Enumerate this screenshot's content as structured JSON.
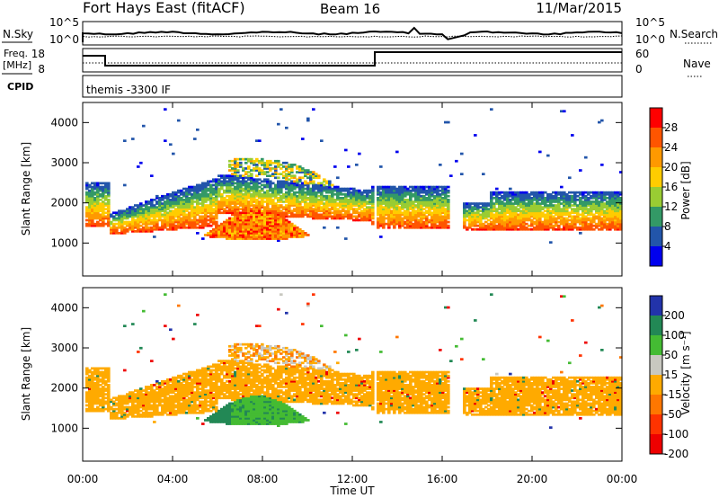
{
  "header": {
    "station": "Fort Hays East (fitACF)",
    "beam": "Beam 16",
    "date": "11/Mar/2015"
  },
  "control_panel": {
    "nsky_label": "N.Sky",
    "nsearch_label": "N.Search",
    "nsky_ticks": [
      "10^5",
      "10^0"
    ],
    "nsky_right_ticks": [
      "10^5",
      "10^0"
    ],
    "freq_label_line1": "Freq.",
    "freq_label_line2": "[MHz]",
    "freq_ticks": [
      "18",
      "8"
    ],
    "nave_label": "Nave",
    "nave_ticks": [
      "60",
      "0"
    ],
    "cpid_label": "CPID",
    "cpid_text": "themis -3300 IF"
  },
  "colorbars": {
    "power": {
      "label": "Power [dB]",
      "ticks": [
        "28",
        "24",
        "20",
        "16",
        "12",
        "8",
        "4"
      ]
    },
    "velocity": {
      "label": "Velocity [m s⁻¹]",
      "ticks": [
        "200",
        "100",
        "50",
        "15",
        "-15",
        "-50",
        "-100",
        "-200"
      ]
    }
  },
  "colors": {
    "power_scale": [
      "#ff0000",
      "#ff5500",
      "#ff9900",
      "#ffcc00",
      "#99cc33",
      "#339966",
      "#2255aa",
      "#0000ee"
    ],
    "velocity_scale": [
      "#2233aa",
      "#228855",
      "#44bb33",
      "#c8c8c0",
      "#ffaa00",
      "#ff7700",
      "#ff3300",
      "#ee0000"
    ],
    "ground_scatter": "#c8c8c0"
  },
  "chart_data": [
    {
      "type": "heatmap",
      "title": "",
      "xlabel": "Time UT",
      "ylabel": "Slant Range [km]",
      "x_ticks": [
        "00:00",
        "04:00",
        "08:00",
        "12:00",
        "16:00",
        "20:00",
        "00:00"
      ],
      "xlim": [
        0,
        24
      ],
      "y_ticks": [
        "4000",
        "3000",
        "2000",
        "1000"
      ],
      "ylim": [
        180,
        4500
      ],
      "colorbar": "Power [dB]",
      "clim": [
        0,
        30
      ],
      "features": [
        {
          "name": "mid-range scatter band",
          "t_start": 0.0,
          "t_end": 12.8,
          "range_km": [
            2200,
            1350
          ]
        },
        {
          "name": "near-range patch",
          "t_start": 5.4,
          "t_end": 10.0,
          "range_km": [
            1350,
            1100
          ],
          "power_db": 26
        },
        {
          "name": "upper arc",
          "t_start": 6.5,
          "t_end": 12.5,
          "range_km": [
            3000,
            1800
          ]
        },
        {
          "name": "post-gap band",
          "t_start": 13.0,
          "t_end": 24.0,
          "range_km": [
            2000,
            1450
          ],
          "power_db": 24
        }
      ]
    },
    {
      "type": "heatmap",
      "title": "",
      "xlabel": "Time UT",
      "ylabel": "Slant Range [km]",
      "x_ticks": [
        "00:00",
        "04:00",
        "08:00",
        "12:00",
        "16:00",
        "20:00",
        "00:00"
      ],
      "xlim": [
        0,
        24
      ],
      "y_ticks": [
        "4000",
        "3000",
        "2000",
        "1000"
      ],
      "ylim": [
        180,
        4500
      ],
      "colorbar": "Velocity [m s⁻¹]",
      "clim": [
        -200,
        200
      ],
      "features": [
        {
          "name": "ground scatter band",
          "t_start": 0.0,
          "t_end": 24.0,
          "range_km": [
            2400,
            1400
          ],
          "velocity": 0
        },
        {
          "name": "near-range patch",
          "t_start": 5.4,
          "t_end": 10.0,
          "range_km": [
            1350,
            1100
          ],
          "velocity": 60
        },
        {
          "name": "upper arc",
          "t_start": 6.5,
          "t_end": 12.5,
          "range_km": [
            3000,
            1800
          ],
          "velocity": -30
        }
      ]
    }
  ]
}
